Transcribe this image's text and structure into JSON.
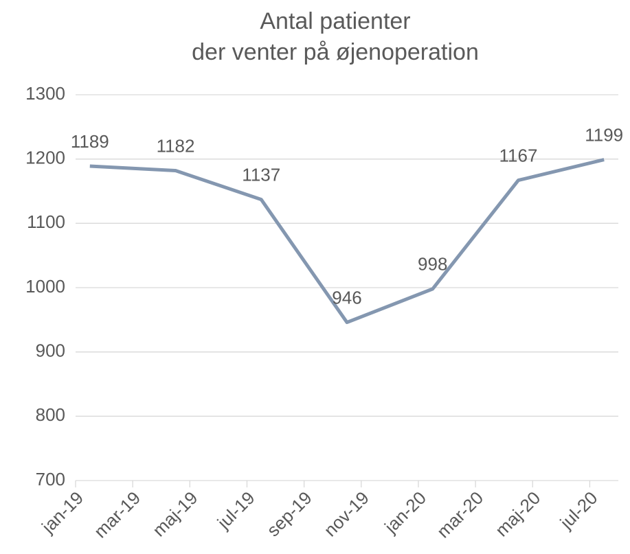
{
  "chart_data": {
    "type": "line",
    "title": [
      "Antal patienter",
      "der venter på øjenoperation"
    ],
    "x": [
      0,
      3,
      6,
      9,
      12,
      15,
      18
    ],
    "series": [
      {
        "name": "Antal patienter",
        "color": "#8497b0",
        "values": [
          1189,
          1182,
          1137,
          946,
          998,
          1167,
          1199
        ]
      }
    ],
    "xlim": [
      0,
      18
    ],
    "xticks": [
      {
        "value": 0,
        "label": "jan-19"
      },
      {
        "value": 2,
        "label": "mar-19"
      },
      {
        "value": 4,
        "label": "maj-19"
      },
      {
        "value": 6,
        "label": "jul-19"
      },
      {
        "value": 8,
        "label": "sep-19"
      },
      {
        "value": 10,
        "label": "nov-19"
      },
      {
        "value": 12,
        "label": "jan-20"
      },
      {
        "value": 14,
        "label": "mar-20"
      },
      {
        "value": 16,
        "label": "maj-20"
      },
      {
        "value": 18,
        "label": "jul-20"
      }
    ],
    "ylim": [
      700,
      1300
    ],
    "yticks": [
      700,
      800,
      900,
      1000,
      1100,
      1200,
      1300
    ],
    "grid": true
  }
}
